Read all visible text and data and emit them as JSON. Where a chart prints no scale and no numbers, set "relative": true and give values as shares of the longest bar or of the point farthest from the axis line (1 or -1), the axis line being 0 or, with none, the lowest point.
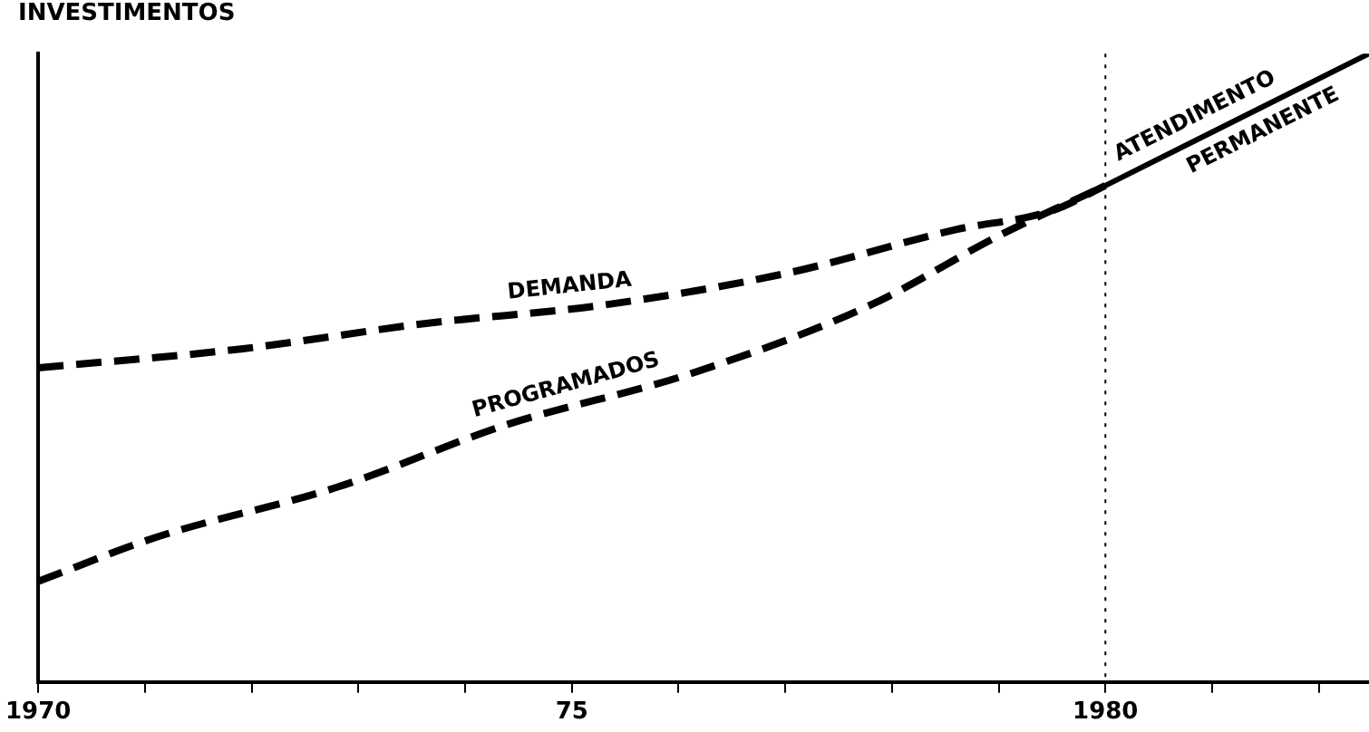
{
  "chart_data": {
    "type": "line",
    "title": "INVESTIMENTOS",
    "relative": true,
    "xlim": [
      1970,
      1982.47
    ],
    "xticks": [
      {
        "value": 1970,
        "label": "1970"
      },
      {
        "value": 1971,
        "label": null
      },
      {
        "value": 1972,
        "label": null
      },
      {
        "value": 1973,
        "label": null
      },
      {
        "value": 1974,
        "label": null
      },
      {
        "value": 1975,
        "label": "75"
      },
      {
        "value": 1976,
        "label": null
      },
      {
        "value": 1977,
        "label": null
      },
      {
        "value": 1978,
        "label": null
      },
      {
        "value": 1979,
        "label": null
      },
      {
        "value": 1980,
        "label": "1980"
      },
      {
        "value": 1981,
        "label": null
      },
      {
        "value": 1982,
        "label": null
      }
    ],
    "series": [
      {
        "name": "DEMANDA",
        "color": "#000000",
        "line_style": "dashed",
        "x": [
          1970,
          1971.9,
          1973.6,
          1975.3,
          1977.0,
          1978.6,
          1979.5,
          1980
        ],
        "values": [
          0.5,
          0.53,
          0.57,
          0.6,
          0.65,
          0.72,
          0.75,
          0.79
        ]
      },
      {
        "name": "PROGRAMADOS",
        "color": "#000000",
        "line_style": "dashed",
        "x": [
          1970,
          1971.1,
          1972.8,
          1974.4,
          1976.1,
          1977.8,
          1979.0,
          1980
        ],
        "values": [
          0.16,
          0.23,
          0.31,
          0.41,
          0.49,
          0.6,
          0.71,
          0.79
        ]
      },
      {
        "name": "ATENDIMENTO PERMANENTE",
        "color": "#000000",
        "line_style": "solid",
        "x": [
          1980,
          1982.47
        ],
        "values": [
          0.79,
          1.0
        ]
      }
    ],
    "ref_lines": [
      {
        "axis": "x",
        "value": 1980,
        "line_style": "dotted"
      }
    ],
    "grid": false,
    "legend": false,
    "marker": "none"
  }
}
